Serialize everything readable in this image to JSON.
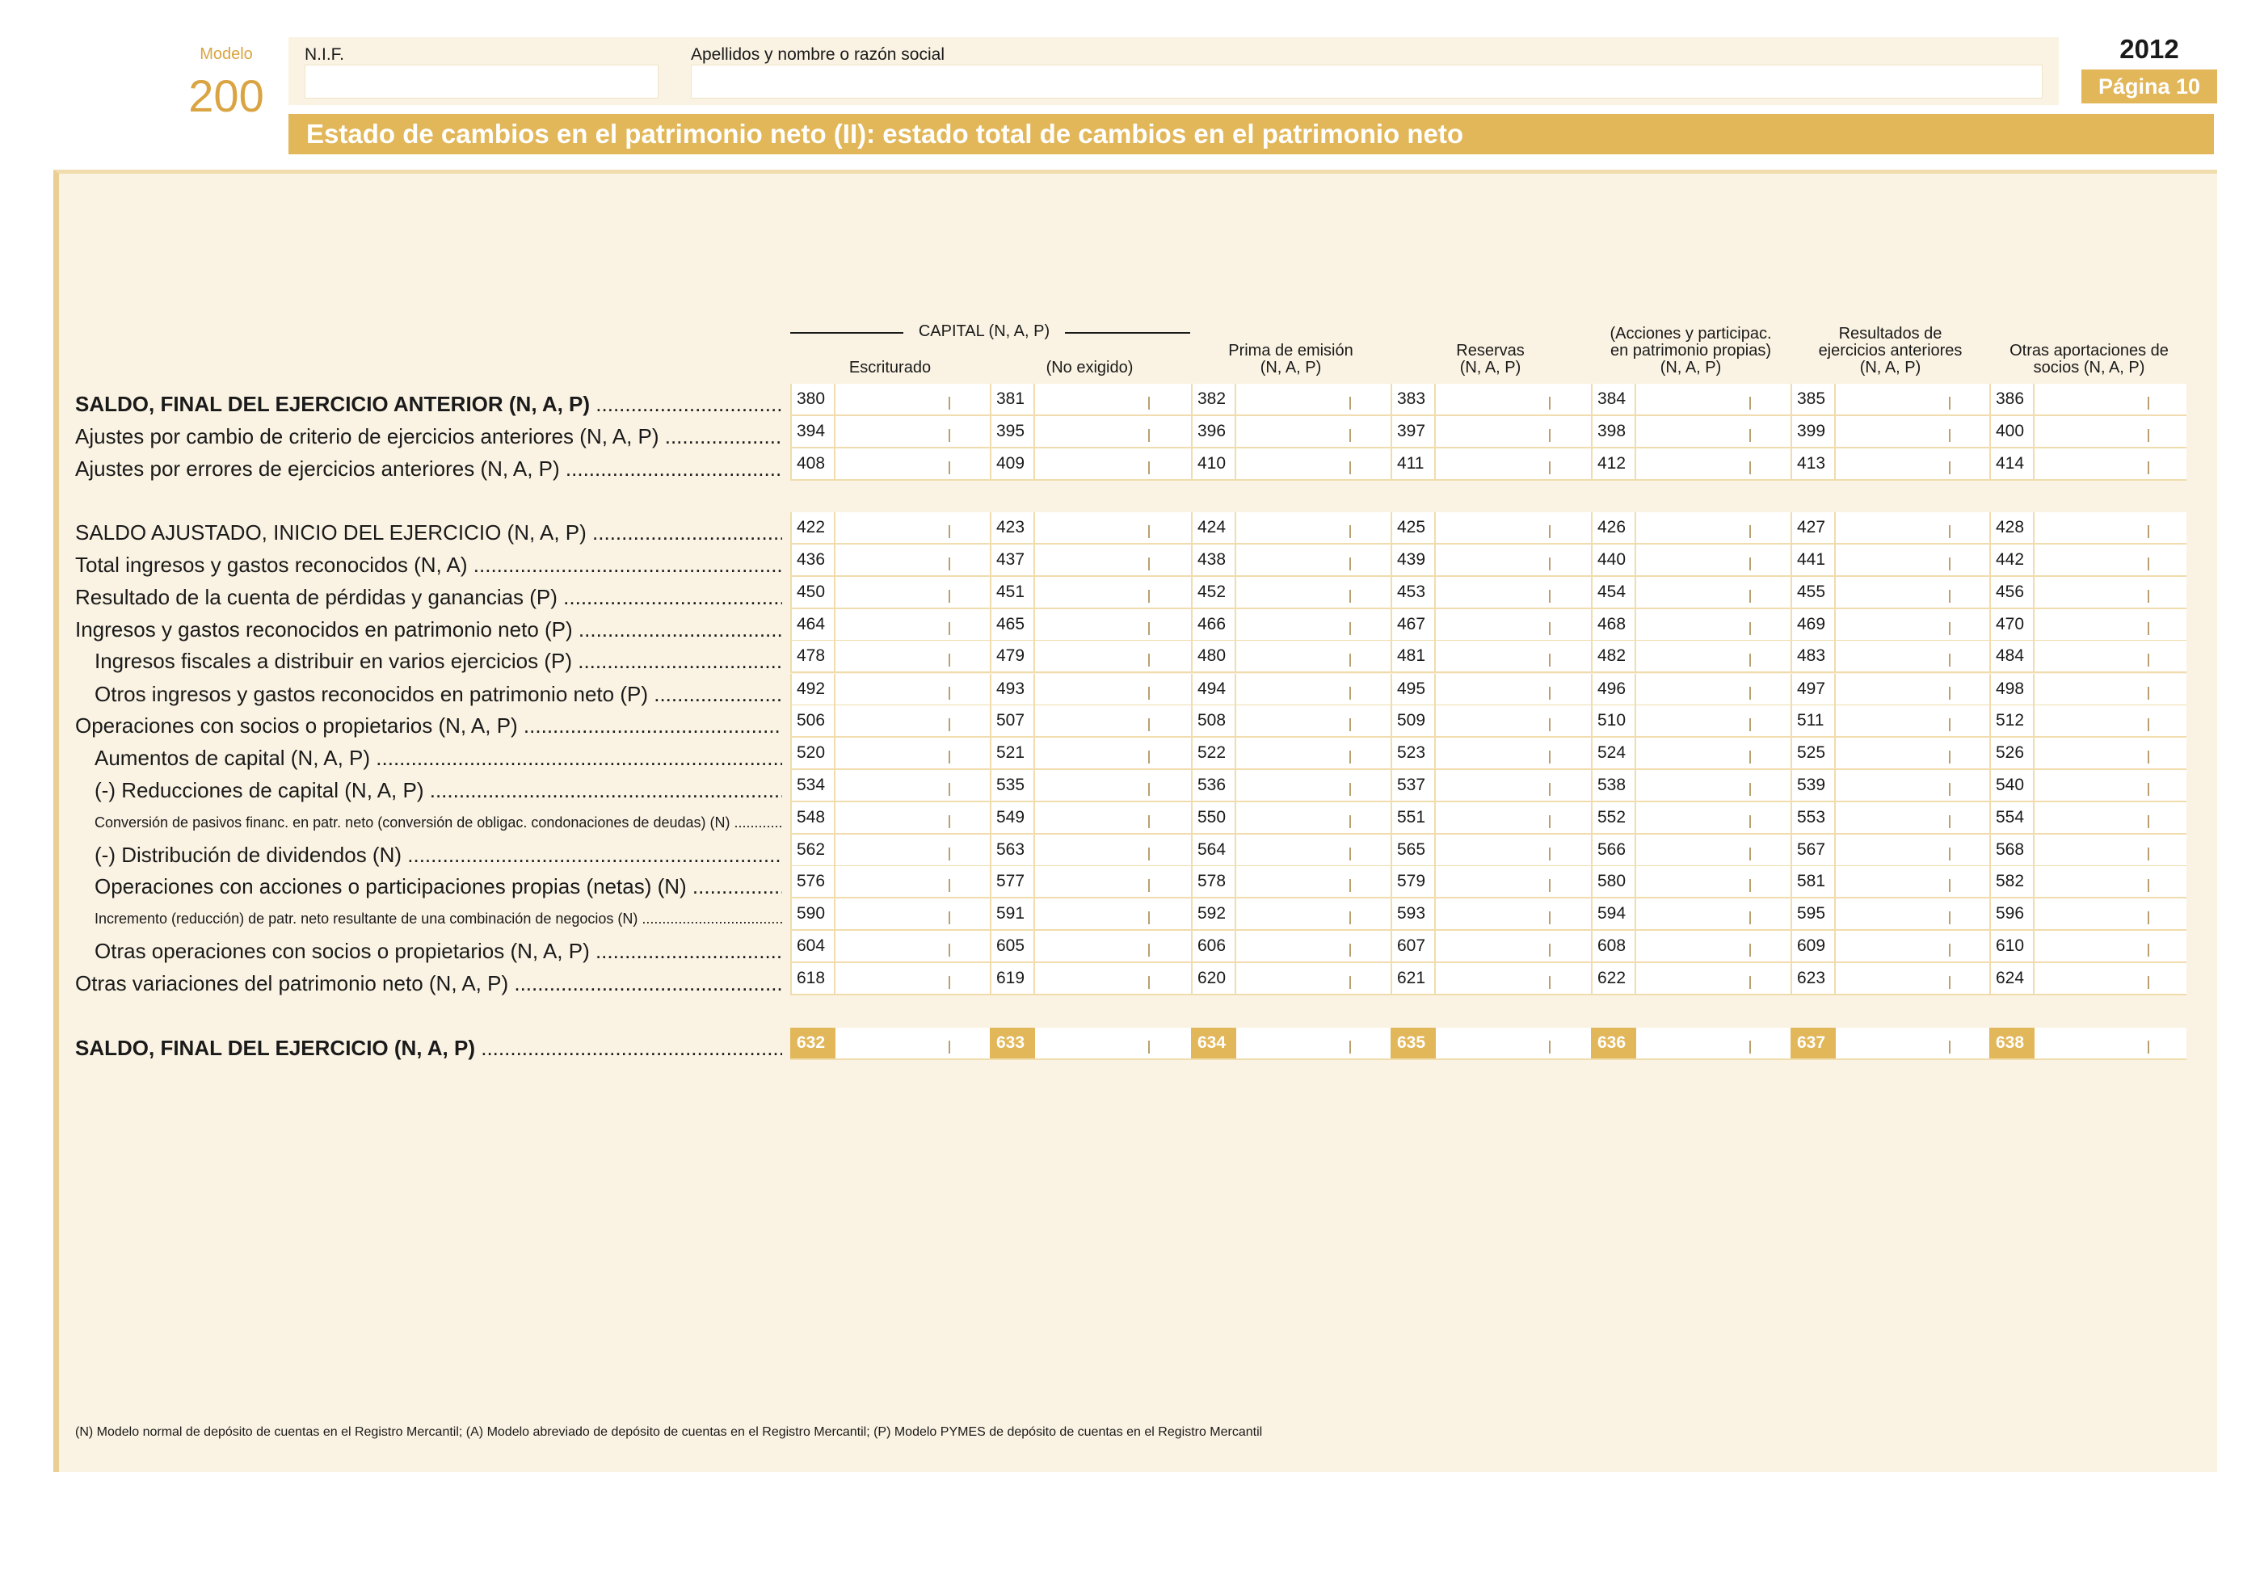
{
  "header": {
    "modelo_label": "Modelo",
    "modelo_number": "200",
    "nif_label": "N.I.F.",
    "nombre_label": "Apellidos y nombre o razón social",
    "year": "2012",
    "page_label": "Página 10",
    "title": "Estado de cambios en el patrimonio neto (II): estado total de cambios en el patrimonio neto"
  },
  "columns": {
    "capital_group": "CAPITAL (N, A, P)",
    "headers": [
      [
        "Escriturado"
      ],
      [
        "(No exigido)"
      ],
      [
        "Prima de emisión",
        "(N, A, P)"
      ],
      [
        "Reservas",
        "(N, A, P)"
      ],
      [
        "(Acciones y participac.",
        "en patrimonio propias)",
        "(N, A, P)"
      ],
      [
        "Resultados de",
        "ejercicios anteriores",
        "(N, A, P)"
      ],
      [
        "Otras aportaciones de",
        "socios (N, A, P)"
      ]
    ]
  },
  "rows": [
    {
      "label": "SALDO, FINAL DEL EJERCICIO ANTERIOR (N, A, P)",
      "codes": [
        "380",
        "381",
        "382",
        "383",
        "384",
        "385",
        "386"
      ]
    },
    {
      "label": "Ajustes por cambio de criterio de ejercicios anteriores (N, A, P)",
      "codes": [
        "394",
        "395",
        "396",
        "397",
        "398",
        "399",
        "400"
      ]
    },
    {
      "label": "Ajustes por errores de ejercicios anteriores (N, A, P)",
      "codes": [
        "408",
        "409",
        "410",
        "411",
        "412",
        "413",
        "414"
      ]
    },
    {
      "label": "SALDO AJUSTADO, INICIO DEL EJERCICIO (N, A, P)",
      "codes": [
        "422",
        "423",
        "424",
        "425",
        "426",
        "427",
        "428"
      ]
    },
    {
      "label": "Total ingresos y gastos reconocidos (N, A)",
      "codes": [
        "436",
        "437",
        "438",
        "439",
        "440",
        "441",
        "442"
      ]
    },
    {
      "label": "Resultado de la cuenta de pérdidas y ganancias (P)",
      "codes": [
        "450",
        "451",
        "452",
        "453",
        "454",
        "455",
        "456"
      ]
    },
    {
      "label": "Ingresos y gastos reconocidos en patrimonio neto (P)",
      "codes": [
        "464",
        "465",
        "466",
        "467",
        "468",
        "469",
        "470"
      ]
    },
    {
      "label": "Ingresos fiscales a distribuir en varios ejercicios (P)",
      "codes": [
        "478",
        "479",
        "480",
        "481",
        "482",
        "483",
        "484"
      ]
    },
    {
      "label": "Otros ingresos y gastos reconocidos en patrimonio neto (P)",
      "codes": [
        "492",
        "493",
        "494",
        "495",
        "496",
        "497",
        "498"
      ]
    },
    {
      "label": "Operaciones con socios o propietarios (N, A, P)",
      "codes": [
        "506",
        "507",
        "508",
        "509",
        "510",
        "511",
        "512"
      ]
    },
    {
      "label": "Aumentos de capital (N, A, P)",
      "codes": [
        "520",
        "521",
        "522",
        "523",
        "524",
        "525",
        "526"
      ]
    },
    {
      "label": "(-) Reducciones de capital (N, A, P)",
      "codes": [
        "534",
        "535",
        "536",
        "537",
        "538",
        "539",
        "540"
      ]
    },
    {
      "label": "Conversión de pasivos financ. en patr. neto (conversión de obligac. condonaciones de deudas) (N)",
      "codes": [
        "548",
        "549",
        "550",
        "551",
        "552",
        "553",
        "554"
      ]
    },
    {
      "label": "(-) Distribución de dividendos (N)",
      "codes": [
        "562",
        "563",
        "564",
        "565",
        "566",
        "567",
        "568"
      ]
    },
    {
      "label": "Operaciones con acciones o participaciones propias (netas) (N)",
      "codes": [
        "576",
        "577",
        "578",
        "579",
        "580",
        "581",
        "582"
      ]
    },
    {
      "label": "Incremento (reducción) de patr. neto resultante de una combinación de negocios (N)",
      "codes": [
        "590",
        "591",
        "592",
        "593",
        "594",
        "595",
        "596"
      ]
    },
    {
      "label": "Otras operaciones con socios o propietarios (N, A, P)",
      "codes": [
        "604",
        "605",
        "606",
        "607",
        "608",
        "609",
        "610"
      ]
    },
    {
      "label": "Otras variaciones del patrimonio neto (N, A, P)",
      "codes": [
        "618",
        "619",
        "620",
        "621",
        "622",
        "623",
        "624"
      ]
    },
    {
      "label": "SALDO, FINAL DEL EJERCICIO (N, A, P)",
      "codes": [
        "632",
        "633",
        "634",
        "635",
        "636",
        "637",
        "638"
      ]
    }
  ],
  "footnote": "(N)   Modelo normal de depósito de cuentas en el Registro Mercantil; (A) Modelo abreviado de depósito de cuentas en el Registro Mercantil; (P) Modelo PYMES de depósito de cuentas en el Registro Mercantil",
  "colors": {
    "accent": "#e2b75a",
    "panel": "#faf3e3",
    "modelo": "#d9a441"
  }
}
